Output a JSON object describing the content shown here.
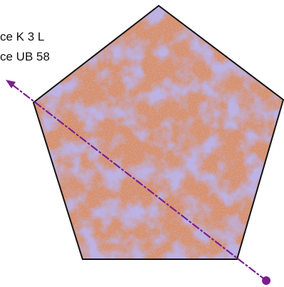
{
  "labels": {
    "line1": "ce K 3 L",
    "line2": "ce UB 58"
  },
  "colors": {
    "texture_base": "#d9916a",
    "texture_mottle": "#7f74c9",
    "outline": "#111111",
    "arrow": "#7a1f8f"
  }
}
